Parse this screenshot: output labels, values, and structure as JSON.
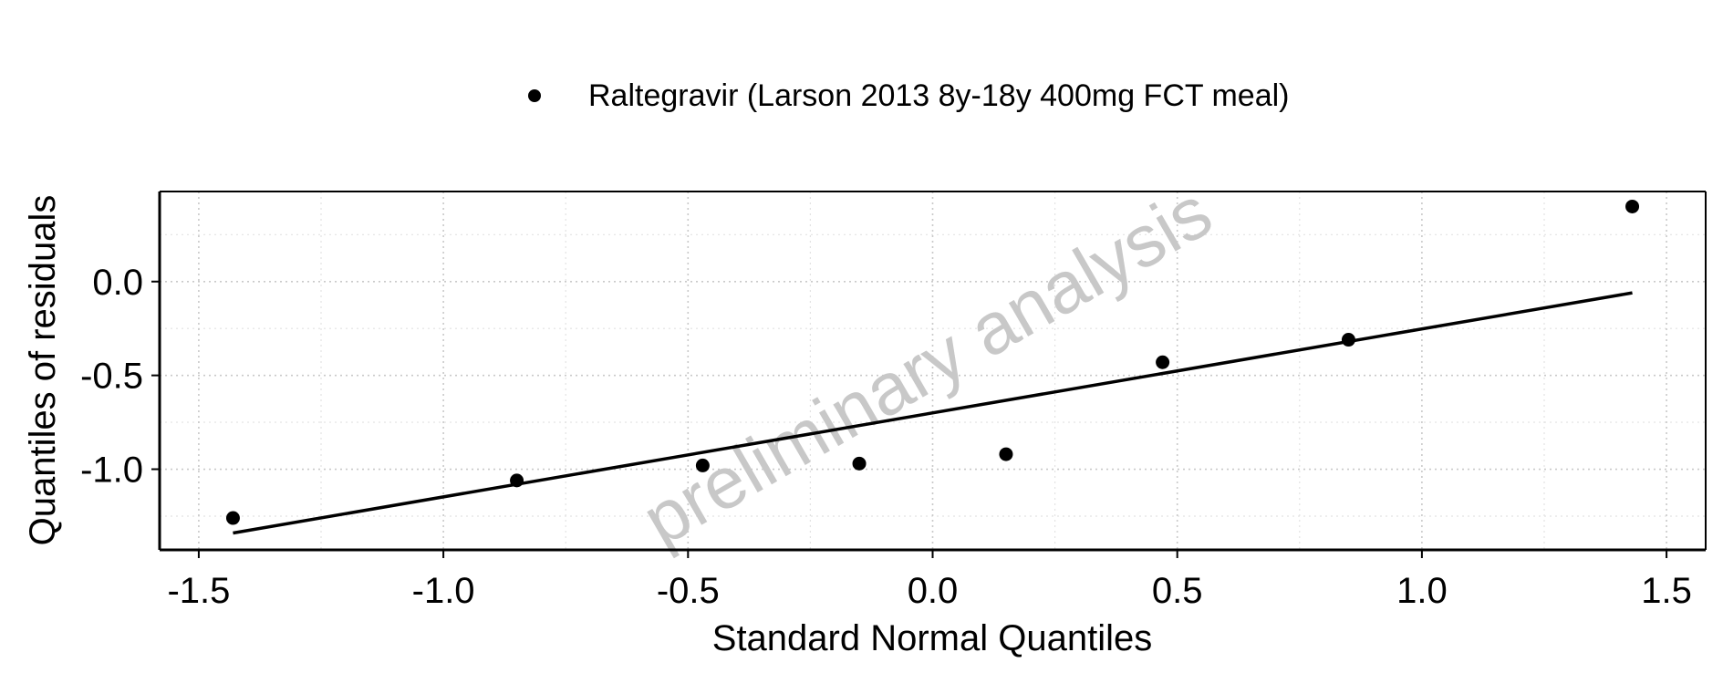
{
  "chart_data": {
    "type": "scatter",
    "title": "",
    "xlabel": "Standard Normal Quantiles",
    "ylabel": "Quantiles of residuals",
    "xlim": [
      -1.58,
      1.58
    ],
    "ylim": [
      -1.43,
      0.48
    ],
    "x_ticks": [
      -1.5,
      -1.0,
      -0.5,
      0.0,
      0.5,
      1.0,
      1.5
    ],
    "x_tick_labels": [
      "-1.5",
      "-1.0",
      "-0.5",
      "0.0",
      "0.5",
      "1.0",
      "1.5"
    ],
    "y_ticks": [
      -1.0,
      -0.5,
      0.0
    ],
    "y_tick_labels": [
      "-1.0",
      "-0.5",
      "0.0"
    ],
    "x_minor_ticks": [
      -1.25,
      -0.75,
      -0.25,
      0.25,
      0.75,
      1.25
    ],
    "y_minor_ticks": [
      -1.25,
      -0.75,
      -0.25,
      0.25
    ],
    "grid": true,
    "legend_position": "top",
    "series": [
      {
        "name": "Raltegravir (Larson 2013 8y-18y 400mg FCT meal)",
        "color": "#000000",
        "marker": "circle",
        "x": [
          -1.43,
          -0.85,
          -0.47,
          -0.15,
          0.15,
          0.47,
          0.85,
          1.43
        ],
        "y": [
          -1.26,
          -1.06,
          -0.98,
          -0.97,
          -0.92,
          -0.43,
          -0.31,
          0.4
        ]
      }
    ],
    "reference_line": {
      "color": "#000000",
      "x": [
        -1.43,
        1.43
      ],
      "y": [
        -1.34,
        -0.06
      ]
    },
    "watermark": "preliminary analysis"
  }
}
